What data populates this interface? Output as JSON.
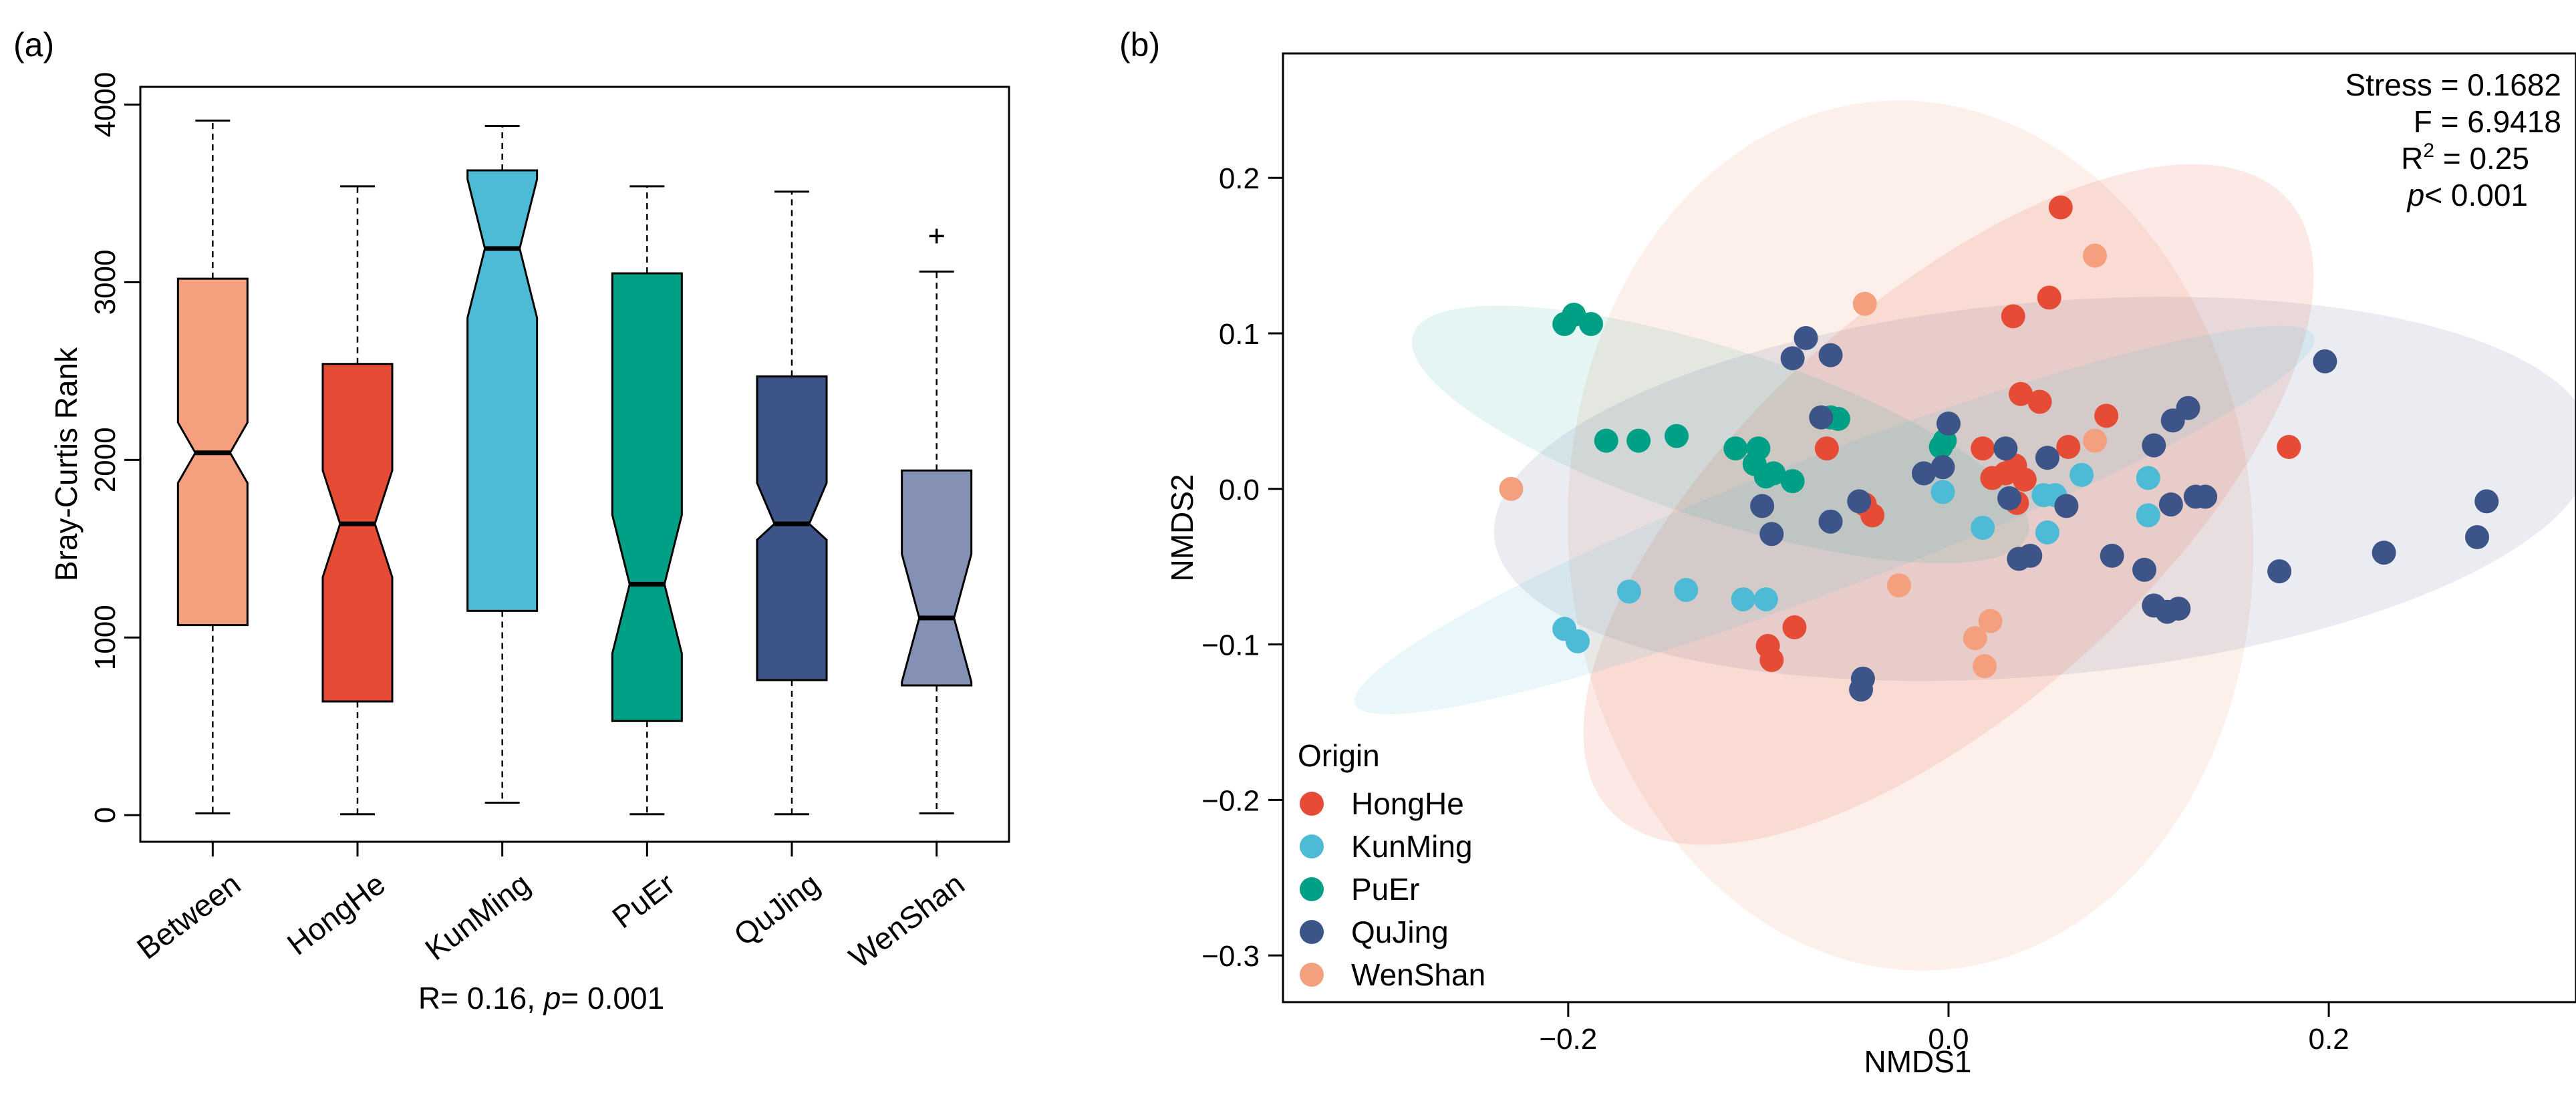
{
  "chart_data": [
    {
      "type": "box",
      "panel_label": "(a)",
      "ylabel": "Bray-Curtis Rank",
      "ylim": [
        -150,
        4100
      ],
      "yticks": [
        0,
        1000,
        2000,
        3000,
        4000
      ],
      "ytick_labels": [
        "0",
        "1000",
        "2000",
        "3000",
        "4000"
      ],
      "categories": [
        "Between",
        "HongHe",
        "KunMing",
        "PuEr",
        "QuJing",
        "WenShan"
      ],
      "notch_fraction": 0.5,
      "boxes": [
        {
          "name": "Between",
          "min": 10,
          "q1": 1070,
          "median": 2040,
          "q3": 3020,
          "max": 3910,
          "notch_low": 1870,
          "notch_high": 2210,
          "color": "#F4A07F"
        },
        {
          "name": "HongHe",
          "min": 5,
          "q1": 640,
          "median": 1640,
          "q3": 2540,
          "max": 3540,
          "notch_low": 1340,
          "notch_high": 1940,
          "color": "#E64B35"
        },
        {
          "name": "KunMing",
          "min": 70,
          "q1": 1150,
          "median": 3190,
          "q3": 3630,
          "max": 3880,
          "notch_low": 2800,
          "notch_high": 3580,
          "color": "#4DBBD5"
        },
        {
          "name": "PuEr",
          "min": 5,
          "q1": 530,
          "median": 1300,
          "q3": 3050,
          "max": 3540,
          "notch_low": 910,
          "notch_high": 1690,
          "color": "#00A087"
        },
        {
          "name": "QuJing",
          "min": 5,
          "q1": 760,
          "median": 1640,
          "q3": 2470,
          "max": 3510,
          "notch_low": 1550,
          "notch_high": 1870,
          "color": "#3C5488"
        },
        {
          "name": "WenShan",
          "min": 10,
          "q1": 730,
          "median": 1110,
          "q3": 1940,
          "max": 3060,
          "notch_low": 750,
          "notch_high": 1470,
          "color": "#8491B4",
          "outliers": [
            3260
          ]
        }
      ],
      "annotation": {
        "prefix": "R= 0.16, ",
        "p_symbol": "p",
        "suffix": "= 0.001"
      }
    },
    {
      "type": "scatter",
      "panel_label": "(b)",
      "xlabel": "NMDS1",
      "ylabel": "NMDS2",
      "xlim": [
        -0.35,
        0.33
      ],
      "ylim": [
        -0.33,
        0.28
      ],
      "xticks": [
        -0.2,
        0.0,
        0.2
      ],
      "xtick_labels": [
        "−0.2",
        "0.0",
        "0.2"
      ],
      "yticks": [
        -0.3,
        -0.2,
        -0.1,
        0.0,
        0.1,
        0.2
      ],
      "ytick_labels": [
        "−0.3",
        "−0.2",
        "−0.1",
        "0.0",
        "0.1",
        "0.2"
      ],
      "stats": [
        {
          "text": "Stress = 0.1682"
        },
        {
          "text": "F = 6.9418"
        },
        {
          "text": "R",
          "sup": "2",
          "after": " = 0.25"
        },
        {
          "text": "p",
          "italic": true,
          "after": "< 0.001"
        }
      ],
      "legend": {
        "title": "Origin",
        "position": "bottom-left",
        "entries": [
          "HongHe",
          "KunMing",
          "PuEr",
          "QuJing",
          "WenShan"
        ]
      },
      "series": [
        {
          "name": "HongHe",
          "color": "#E64B35",
          "ellipse": {
            "cx": 0.0,
            "cy": -0.01,
            "rx": 0.24,
            "ry": 0.13,
            "angle_deg": 42,
            "opacity": 0.12
          },
          "points": [
            [
              0.059,
              0.181
            ],
            [
              0.053,
              0.123
            ],
            [
              0.034,
              0.111
            ],
            [
              0.048,
              0.056
            ],
            [
              0.038,
              0.061
            ],
            [
              0.083,
              0.047
            ],
            [
              0.035,
              0.015
            ],
            [
              -0.064,
              0.026
            ],
            [
              -0.04,
              -0.017
            ],
            [
              -0.044,
              -0.01
            ],
            [
              0.04,
              0.006
            ],
            [
              0.03,
              0.01
            ],
            [
              0.036,
              -0.009
            ],
            [
              0.023,
              0.007
            ],
            [
              0.179,
              0.027
            ],
            [
              0.018,
              0.026
            ],
            [
              -0.095,
              -0.101
            ],
            [
              -0.081,
              -0.089
            ],
            [
              -0.093,
              -0.11
            ],
            [
              0.063,
              0.027
            ]
          ]
        },
        {
          "name": "KunMing",
          "color": "#4DBBD5",
          "ellipse": {
            "cx": -0.06,
            "cy": -0.02,
            "rx": 0.27,
            "ry": 0.043,
            "angle_deg": 21,
            "opacity": 0.12
          },
          "points": [
            [
              -0.202,
              -0.09
            ],
            [
              -0.195,
              -0.098
            ],
            [
              -0.168,
              -0.066
            ],
            [
              -0.138,
              -0.065
            ],
            [
              -0.108,
              -0.071
            ],
            [
              -0.096,
              -0.071
            ],
            [
              -0.003,
              -0.002
            ],
            [
              0.018,
              -0.025
            ],
            [
              0.05,
              -0.004
            ],
            [
              0.056,
              -0.004
            ],
            [
              0.07,
              0.009
            ],
            [
              0.105,
              0.007
            ],
            [
              0.105,
              -0.017
            ],
            [
              0.052,
              -0.028
            ]
          ]
        },
        {
          "name": "PuEr",
          "color": "#00A087",
          "ellipse": {
            "cx": -0.12,
            "cy": 0.035,
            "rx": 0.17,
            "ry": 0.055,
            "angle_deg": -18,
            "opacity": 0.1
          },
          "points": [
            [
              -0.202,
              0.106
            ],
            [
              -0.197,
              0.112
            ],
            [
              -0.188,
              0.106
            ],
            [
              -0.18,
              0.031
            ],
            [
              -0.163,
              0.031
            ],
            [
              -0.143,
              0.034
            ],
            [
              -0.112,
              0.026
            ],
            [
              -0.1,
              0.026
            ],
            [
              -0.102,
              0.016
            ],
            [
              -0.096,
              0.008
            ],
            [
              -0.092,
              0.01
            ],
            [
              -0.082,
              0.005
            ],
            [
              -0.062,
              0.046
            ],
            [
              -0.058,
              0.045
            ],
            [
              -0.002,
              0.031
            ],
            [
              -0.004,
              0.027
            ]
          ]
        },
        {
          "name": "QuJing",
          "color": "#3C5488",
          "ellipse": {
            "cx": 0.05,
            "cy": 0.0,
            "rx": 0.29,
            "ry": 0.12,
            "angle_deg": 5,
            "opacity": 0.11
          },
          "points": [
            [
              -0.082,
              0.084
            ],
            [
              -0.075,
              0.097
            ],
            [
              -0.062,
              0.086
            ],
            [
              -0.067,
              0.046
            ],
            [
              0.0,
              0.042
            ],
            [
              0.03,
              0.026
            ],
            [
              0.052,
              0.02
            ],
            [
              0.108,
              0.028
            ],
            [
              0.118,
              0.044
            ],
            [
              0.126,
              0.052
            ],
            [
              0.198,
              0.082
            ],
            [
              -0.098,
              -0.011
            ],
            [
              -0.093,
              -0.029
            ],
            [
              -0.062,
              -0.021
            ],
            [
              -0.047,
              -0.008
            ],
            [
              -0.013,
              0.01
            ],
            [
              -0.003,
              0.014
            ],
            [
              0.032,
              -0.006
            ],
            [
              0.062,
              -0.011
            ],
            [
              0.086,
              -0.043
            ],
            [
              0.103,
              -0.052
            ],
            [
              0.108,
              -0.075
            ],
            [
              0.115,
              -0.079
            ],
            [
              0.121,
              -0.077
            ],
            [
              0.117,
              -0.01
            ],
            [
              0.13,
              -0.005
            ],
            [
              0.135,
              -0.005
            ],
            [
              0.174,
              -0.053
            ],
            [
              0.229,
              -0.041
            ],
            [
              0.278,
              -0.031
            ],
            [
              0.283,
              -0.008
            ],
            [
              -0.045,
              -0.122
            ],
            [
              -0.046,
              -0.129
            ],
            [
              0.037,
              -0.045
            ],
            [
              0.043,
              -0.043
            ]
          ]
        },
        {
          "name": "WenShan",
          "color": "#F4A07F",
          "ellipse": {
            "cx": -0.02,
            "cy": -0.03,
            "rx": 0.18,
            "ry": 0.28,
            "angle_deg": 4,
            "opacity": 0.16
          },
          "points": [
            [
              0.077,
              0.15
            ],
            [
              -0.044,
              0.119
            ],
            [
              -0.23,
              0.0
            ],
            [
              -0.026,
              -0.062
            ],
            [
              0.077,
              0.031
            ],
            [
              0.014,
              -0.096
            ],
            [
              0.022,
              -0.085
            ],
            [
              0.019,
              -0.114
            ]
          ]
        }
      ]
    }
  ]
}
